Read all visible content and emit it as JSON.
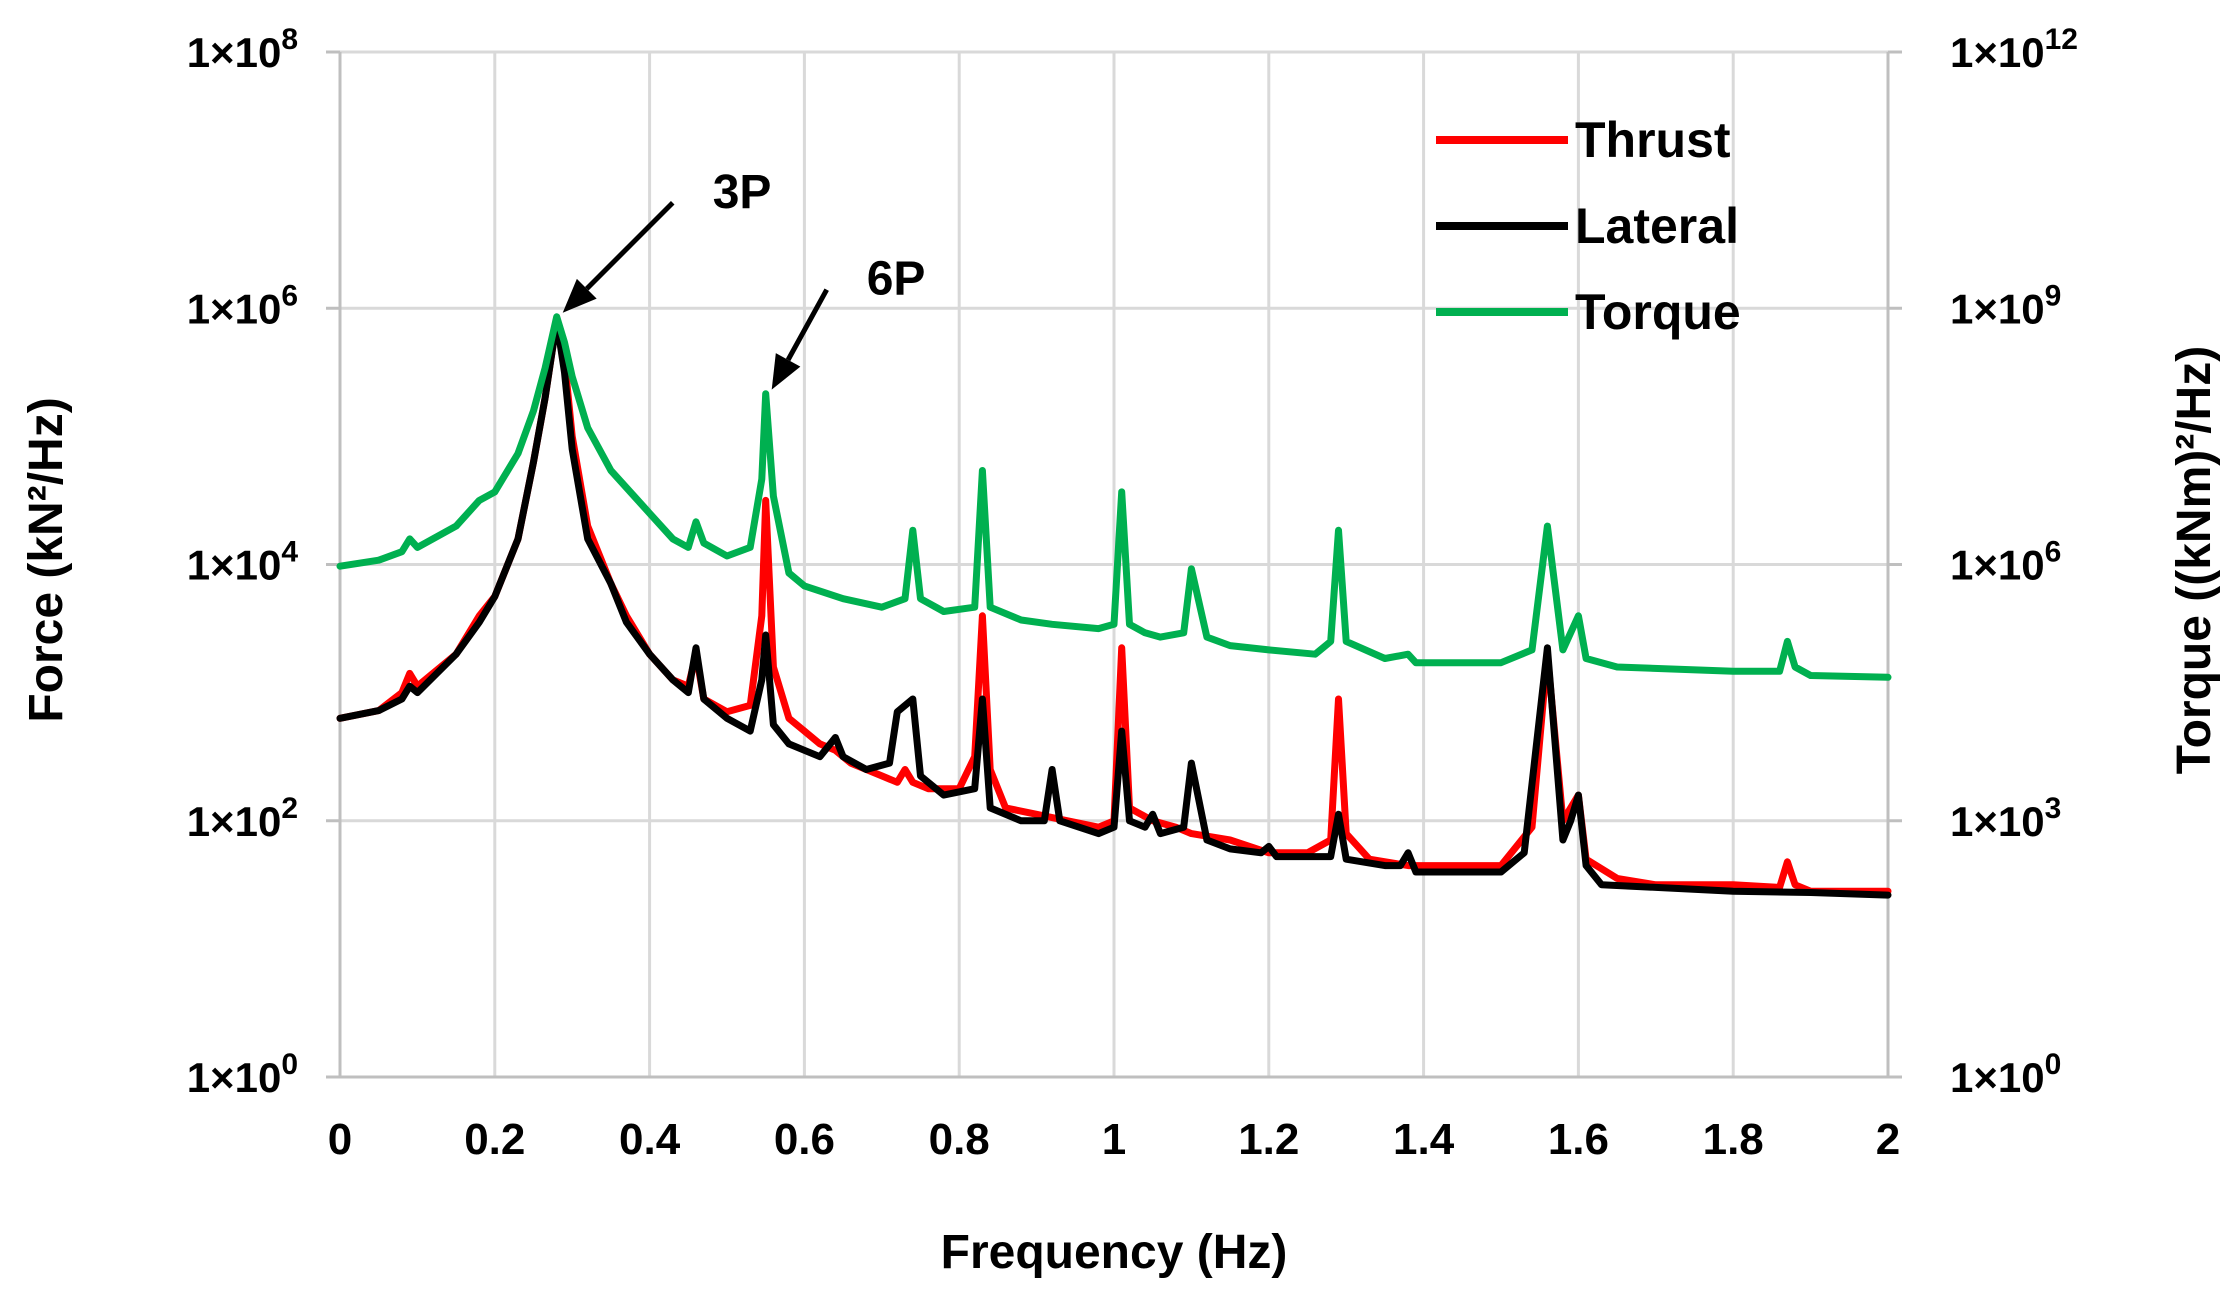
{
  "chart_data": {
    "type": "line",
    "title": "",
    "xlabel": "Frequency (Hz)",
    "ylabel_left": "Force (kN²/Hz)",
    "ylabel_right": "Torque ((kNm)²/Hz)",
    "xlim": [
      0,
      2
    ],
    "x_ticks": [
      "0",
      "0.2",
      "0.4",
      "0.6",
      "0.8",
      "1",
      "1.2",
      "1.4",
      "1.6",
      "1.8",
      "2"
    ],
    "ylim_left_log10": [
      0,
      8
    ],
    "ylim_right_log10": [
      0,
      12
    ],
    "y_ticks_left": [
      {
        "base": "1×10",
        "exp": "8",
        "log10": 8
      },
      {
        "base": "1×10",
        "exp": "6",
        "log10": 6
      },
      {
        "base": "1×10",
        "exp": "4",
        "log10": 4
      },
      {
        "base": "1×10",
        "exp": "2",
        "log10": 2
      },
      {
        "base": "1×10",
        "exp": "0",
        "log10": 0
      }
    ],
    "y_ticks_right": [
      {
        "base": "1×10",
        "exp": "12",
        "log10": 12
      },
      {
        "base": "1×10",
        "exp": "9",
        "log10": 9
      },
      {
        "base": "1×10",
        "exp": "6",
        "log10": 6
      },
      {
        "base": "1×10",
        "exp": "3",
        "log10": 3
      },
      {
        "base": "1×10",
        "exp": "0",
        "log10": 0
      }
    ],
    "grid": true,
    "legend_position": "top-right",
    "series": [
      {
        "name": "Thrust",
        "color": "#ff0000",
        "axis": "left",
        "points": [
          [
            0,
            2.8
          ],
          [
            0.05,
            2.86
          ],
          [
            0.08,
            3.0
          ],
          [
            0.09,
            3.15
          ],
          [
            0.1,
            3.05
          ],
          [
            0.15,
            3.3
          ],
          [
            0.18,
            3.6
          ],
          [
            0.2,
            3.75
          ],
          [
            0.23,
            4.2
          ],
          [
            0.25,
            4.8
          ],
          [
            0.265,
            5.3
          ],
          [
            0.28,
            5.9
          ],
          [
            0.29,
            5.6
          ],
          [
            0.3,
            5.0
          ],
          [
            0.32,
            4.3
          ],
          [
            0.35,
            3.85
          ],
          [
            0.37,
            3.6
          ],
          [
            0.4,
            3.3
          ],
          [
            0.43,
            3.1
          ],
          [
            0.45,
            3.05
          ],
          [
            0.46,
            3.3
          ],
          [
            0.47,
            2.95
          ],
          [
            0.5,
            2.85
          ],
          [
            0.53,
            2.9
          ],
          [
            0.545,
            3.6
          ],
          [
            0.55,
            4.5
          ],
          [
            0.56,
            3.2
          ],
          [
            0.58,
            2.8
          ],
          [
            0.6,
            2.7
          ],
          [
            0.62,
            2.6
          ],
          [
            0.64,
            2.55
          ],
          [
            0.66,
            2.45
          ],
          [
            0.68,
            2.4
          ],
          [
            0.7,
            2.35
          ],
          [
            0.72,
            2.3
          ],
          [
            0.73,
            2.4
          ],
          [
            0.74,
            2.3
          ],
          [
            0.76,
            2.25
          ],
          [
            0.8,
            2.25
          ],
          [
            0.82,
            2.5
          ],
          [
            0.83,
            3.6
          ],
          [
            0.84,
            2.4
          ],
          [
            0.86,
            2.1
          ],
          [
            0.9,
            2.05
          ],
          [
            0.94,
            2.0
          ],
          [
            0.98,
            1.95
          ],
          [
            1.0,
            2.0
          ],
          [
            1.01,
            3.35
          ],
          [
            1.02,
            2.1
          ],
          [
            1.05,
            2.0
          ],
          [
            1.08,
            1.95
          ],
          [
            1.1,
            1.9
          ],
          [
            1.15,
            1.85
          ],
          [
            1.2,
            1.75
          ],
          [
            1.25,
            1.75
          ],
          [
            1.28,
            1.85
          ],
          [
            1.29,
            2.95
          ],
          [
            1.3,
            1.9
          ],
          [
            1.33,
            1.7
          ],
          [
            1.38,
            1.65
          ],
          [
            1.42,
            1.65
          ],
          [
            1.5,
            1.65
          ],
          [
            1.54,
            1.95
          ],
          [
            1.56,
            3.3
          ],
          [
            1.58,
            2.0
          ],
          [
            1.6,
            2.2
          ],
          [
            1.61,
            1.7
          ],
          [
            1.65,
            1.55
          ],
          [
            1.7,
            1.5
          ],
          [
            1.8,
            1.5
          ],
          [
            1.86,
            1.48
          ],
          [
            1.87,
            1.68
          ],
          [
            1.88,
            1.5
          ],
          [
            1.9,
            1.45
          ],
          [
            2.0,
            1.45
          ]
        ]
      },
      {
        "name": "Lateral",
        "color": "#000000",
        "axis": "left",
        "points": [
          [
            0,
            2.8
          ],
          [
            0.05,
            2.86
          ],
          [
            0.08,
            2.95
          ],
          [
            0.09,
            3.05
          ],
          [
            0.1,
            3.0
          ],
          [
            0.15,
            3.3
          ],
          [
            0.18,
            3.55
          ],
          [
            0.2,
            3.75
          ],
          [
            0.23,
            4.2
          ],
          [
            0.25,
            4.8
          ],
          [
            0.265,
            5.3
          ],
          [
            0.28,
            5.9
          ],
          [
            0.29,
            5.5
          ],
          [
            0.3,
            4.9
          ],
          [
            0.32,
            4.2
          ],
          [
            0.35,
            3.85
          ],
          [
            0.37,
            3.55
          ],
          [
            0.4,
            3.3
          ],
          [
            0.43,
            3.1
          ],
          [
            0.45,
            3.0
          ],
          [
            0.46,
            3.35
          ],
          [
            0.47,
            2.95
          ],
          [
            0.5,
            2.8
          ],
          [
            0.53,
            2.7
          ],
          [
            0.545,
            3.1
          ],
          [
            0.55,
            3.45
          ],
          [
            0.56,
            2.75
          ],
          [
            0.58,
            2.6
          ],
          [
            0.6,
            2.55
          ],
          [
            0.62,
            2.5
          ],
          [
            0.64,
            2.65
          ],
          [
            0.65,
            2.5
          ],
          [
            0.68,
            2.4
          ],
          [
            0.71,
            2.45
          ],
          [
            0.72,
            2.85
          ],
          [
            0.74,
            2.95
          ],
          [
            0.75,
            2.35
          ],
          [
            0.78,
            2.2
          ],
          [
            0.82,
            2.25
          ],
          [
            0.83,
            2.95
          ],
          [
            0.84,
            2.1
          ],
          [
            0.88,
            2.0
          ],
          [
            0.91,
            2.0
          ],
          [
            0.92,
            2.4
          ],
          [
            0.93,
            2.0
          ],
          [
            0.98,
            1.9
          ],
          [
            1.0,
            1.95
          ],
          [
            1.01,
            2.7
          ],
          [
            1.02,
            2.0
          ],
          [
            1.04,
            1.95
          ],
          [
            1.05,
            2.05
          ],
          [
            1.06,
            1.9
          ],
          [
            1.09,
            1.95
          ],
          [
            1.1,
            2.45
          ],
          [
            1.12,
            1.85
          ],
          [
            1.15,
            1.78
          ],
          [
            1.19,
            1.75
          ],
          [
            1.2,
            1.8
          ],
          [
            1.21,
            1.72
          ],
          [
            1.28,
            1.72
          ],
          [
            1.29,
            2.05
          ],
          [
            1.3,
            1.7
          ],
          [
            1.35,
            1.65
          ],
          [
            1.37,
            1.65
          ],
          [
            1.38,
            1.75
          ],
          [
            1.39,
            1.6
          ],
          [
            1.5,
            1.6
          ],
          [
            1.53,
            1.75
          ],
          [
            1.56,
            3.35
          ],
          [
            1.58,
            1.85
          ],
          [
            1.59,
            2.0
          ],
          [
            1.6,
            2.2
          ],
          [
            1.61,
            1.65
          ],
          [
            1.63,
            1.5
          ],
          [
            1.7,
            1.48
          ],
          [
            1.8,
            1.45
          ],
          [
            1.9,
            1.44
          ],
          [
            2.0,
            1.42
          ]
        ]
      },
      {
        "name": "Torque",
        "color": "#00b050",
        "axis": "right",
        "points": [
          [
            0,
            5.98
          ],
          [
            0.05,
            6.05
          ],
          [
            0.08,
            6.15
          ],
          [
            0.09,
            6.3
          ],
          [
            0.1,
            6.2
          ],
          [
            0.15,
            6.45
          ],
          [
            0.18,
            6.75
          ],
          [
            0.2,
            6.85
          ],
          [
            0.23,
            7.3
          ],
          [
            0.25,
            7.8
          ],
          [
            0.265,
            8.3
          ],
          [
            0.28,
            8.9
          ],
          [
            0.29,
            8.6
          ],
          [
            0.3,
            8.2
          ],
          [
            0.32,
            7.6
          ],
          [
            0.35,
            7.1
          ],
          [
            0.4,
            6.6
          ],
          [
            0.43,
            6.3
          ],
          [
            0.45,
            6.2
          ],
          [
            0.46,
            6.5
          ],
          [
            0.47,
            6.25
          ],
          [
            0.5,
            6.1
          ],
          [
            0.53,
            6.2
          ],
          [
            0.545,
            7.0
          ],
          [
            0.55,
            8.0
          ],
          [
            0.56,
            6.8
          ],
          [
            0.58,
            5.9
          ],
          [
            0.6,
            5.75
          ],
          [
            0.65,
            5.6
          ],
          [
            0.7,
            5.5
          ],
          [
            0.73,
            5.6
          ],
          [
            0.74,
            6.4
          ],
          [
            0.75,
            5.6
          ],
          [
            0.78,
            5.45
          ],
          [
            0.82,
            5.5
          ],
          [
            0.83,
            7.1
          ],
          [
            0.84,
            5.5
          ],
          [
            0.88,
            5.35
          ],
          [
            0.92,
            5.3
          ],
          [
            0.98,
            5.25
          ],
          [
            1.0,
            5.3
          ],
          [
            1.01,
            6.85
          ],
          [
            1.02,
            5.3
          ],
          [
            1.04,
            5.2
          ],
          [
            1.06,
            5.15
          ],
          [
            1.09,
            5.2
          ],
          [
            1.1,
            5.95
          ],
          [
            1.12,
            5.15
          ],
          [
            1.15,
            5.05
          ],
          [
            1.2,
            5.0
          ],
          [
            1.26,
            4.95
          ],
          [
            1.28,
            5.1
          ],
          [
            1.29,
            6.4
          ],
          [
            1.3,
            5.1
          ],
          [
            1.35,
            4.9
          ],
          [
            1.38,
            4.95
          ],
          [
            1.39,
            4.85
          ],
          [
            1.5,
            4.85
          ],
          [
            1.54,
            5.0
          ],
          [
            1.56,
            6.45
          ],
          [
            1.58,
            5.0
          ],
          [
            1.6,
            5.4
          ],
          [
            1.61,
            4.9
          ],
          [
            1.65,
            4.8
          ],
          [
            1.8,
            4.75
          ],
          [
            1.86,
            4.75
          ],
          [
            1.87,
            5.1
          ],
          [
            1.88,
            4.8
          ],
          [
            1.9,
            4.7
          ],
          [
            2.0,
            4.68
          ]
        ]
      }
    ],
    "annotations": [
      {
        "text": "3P",
        "x": 0.28
      },
      {
        "text": "6P",
        "x": 0.55
      }
    ]
  }
}
